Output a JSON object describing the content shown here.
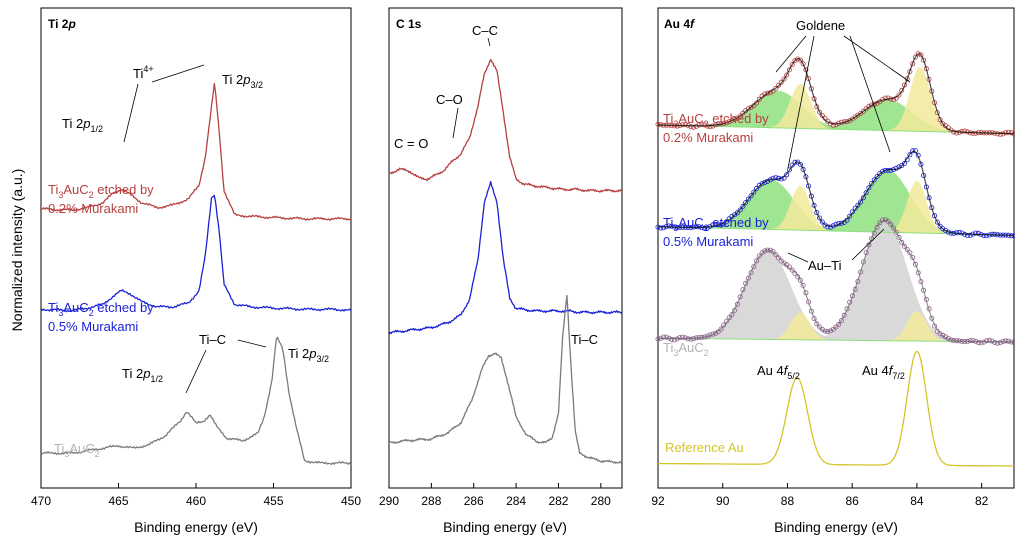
{
  "y_axis_title": "Normalized intensity (a.u.)",
  "colors": {
    "red": "#b5403f",
    "blue": "#1a21d6",
    "gray": "#7a7a7a",
    "pristine_label": "#b3b3b3",
    "ref": "#d4c42a",
    "goldene_fill": "#8ee07f",
    "comp_fill": "#f2ea9a",
    "auti_fill": "#d2d2d2",
    "purple": "#8e5c8e"
  },
  "labels": {
    "ti2p_title_main": "Ti 2",
    "ti2p_title_it": "p",
    "c1s_title": "C 1s",
    "au4f_title_main": "Au 4",
    "au4f_title_it": "f",
    "x_axis_title": "Binding energy (eV)",
    "ti_prefix": "Ti",
    "ti4": "Ti",
    "ti4_sup": "4+",
    "p_it": "p",
    "sub12": "1/2",
    "sub32": "3/2",
    "tic": "Ti–C",
    "cc": "C–C",
    "co": "C–O",
    "c_eq_o": "C = O",
    "goldene": "Goldene",
    "auti": "Au–Ti",
    "au4f_pre": "Au 4",
    "f_it": "f",
    "sub52": "5/2",
    "sub72": "7/2",
    "ref_au": "Reference Au",
    "sample_ti": "Ti",
    "sample_3": "3",
    "sample_au": "AuC",
    "sample_2": "2",
    "etched_by": " etched by",
    "murakami_02": "0.2% Murakami",
    "murakami_05": "0.5% Murakami"
  },
  "chart_data": [
    {
      "type": "line",
      "panel": "Ti 2p",
      "title": "Ti 2p",
      "xlabel": "Binding energy (eV)",
      "ylabel": "Normalized intensity (a.u.)",
      "xlim": [
        470,
        450
      ],
      "xticks": [
        470,
        465,
        460,
        455,
        450
      ],
      "grid": false,
      "series": [
        {
          "name": "Ti3AuC2 etched by 0.2% Murakami",
          "x": [
            470,
            468,
            467,
            466,
            465.3,
            464.8,
            464.3,
            463.5,
            462.5,
            461.5,
            460.5,
            459.8,
            459.4,
            459.0,
            458.8,
            458.5,
            458.2,
            457.5,
            456.5,
            455,
            453,
            451,
            450
          ],
          "y": [
            2.63,
            2.62,
            2.64,
            2.68,
            2.76,
            2.79,
            2.75,
            2.68,
            2.64,
            2.66,
            2.71,
            2.82,
            3.05,
            3.45,
            3.65,
            3.25,
            2.78,
            2.58,
            2.57,
            2.56,
            2.55,
            2.55,
            2.55
          ]
        },
        {
          "name": "Ti3AuC2 etched by 0.5% Murakami",
          "x": [
            470,
            468,
            467,
            466,
            465.3,
            464.8,
            464.3,
            463.5,
            462.5,
            461.5,
            460.5,
            459.8,
            459.4,
            459.0,
            458.8,
            458.5,
            458.2,
            457.5,
            456.5,
            455,
            453,
            451,
            450
          ],
          "y": [
            1.82,
            1.81,
            1.83,
            1.86,
            1.93,
            1.97,
            1.95,
            1.88,
            1.84,
            1.84,
            1.87,
            1.97,
            2.25,
            2.72,
            2.75,
            2.45,
            2.02,
            1.86,
            1.84,
            1.83,
            1.82,
            1.82,
            1.81
          ]
        },
        {
          "name": "Ti3AuC2",
          "x": [
            470,
            468,
            466,
            465,
            464,
            463,
            462,
            461,
            460.6,
            460,
            459.5,
            459.1,
            458.7,
            458,
            457,
            456,
            455.6,
            455.1,
            454.8,
            454.4,
            454,
            453.5,
            453,
            452,
            451,
            450
          ],
          "y": [
            0.66,
            0.66,
            0.7,
            0.72,
            0.7,
            0.73,
            0.8,
            0.92,
            1.0,
            0.9,
            0.92,
            0.97,
            0.88,
            0.78,
            0.76,
            0.82,
            0.95,
            1.25,
            1.6,
            1.5,
            1.15,
            0.85,
            0.6,
            0.58,
            0.58,
            0.58
          ]
        }
      ]
    },
    {
      "type": "line",
      "panel": "C 1s",
      "title": "C 1s",
      "xlabel": "Binding energy (eV)",
      "xlim": [
        290,
        279
      ],
      "xticks": [
        290,
        288,
        286,
        284,
        282,
        280
      ],
      "grid": false,
      "series": [
        {
          "name": "Ti3AuC2 etched by 0.2% Murakami",
          "x": [
            290,
            289.5,
            289.0,
            288.6,
            288.2,
            287.8,
            287.4,
            287.0,
            286.6,
            286.2,
            285.8,
            285.5,
            285.2,
            284.9,
            284.6,
            284.3,
            284.0,
            283.6,
            283.2,
            282.8,
            282.3,
            281.8,
            281.2,
            280.5,
            279.8,
            279
          ],
          "y": [
            2.82,
            2.86,
            2.84,
            2.79,
            2.78,
            2.81,
            2.85,
            2.92,
            2.98,
            3.1,
            3.35,
            3.6,
            3.72,
            3.62,
            3.3,
            2.95,
            2.78,
            2.74,
            2.73,
            2.72,
            2.71,
            2.7,
            2.7,
            2.69,
            2.69,
            2.69
          ]
        },
        {
          "name": "Ti3AuC2 etched by 0.5% Murakami",
          "x": [
            290,
            289.0,
            288.0,
            287.2,
            286.6,
            286.2,
            285.8,
            285.5,
            285.2,
            284.9,
            284.6,
            284.3,
            284.0,
            283.6,
            283.0,
            282.5,
            282.0,
            281.5,
            281.0,
            280.0,
            279
          ],
          "y": [
            1.58,
            1.6,
            1.62,
            1.66,
            1.72,
            1.84,
            2.15,
            2.6,
            2.75,
            2.6,
            2.15,
            1.85,
            1.77,
            1.76,
            1.75,
            1.75,
            1.75,
            1.75,
            1.74,
            1.74,
            1.74
          ]
        },
        {
          "name": "Ti3AuC2",
          "x": [
            290,
            289.0,
            288.0,
            287.2,
            286.6,
            286.1,
            285.6,
            285.3,
            285.0,
            284.7,
            284.4,
            284.0,
            283.5,
            283.0,
            282.6,
            282.3,
            282.0,
            281.8,
            281.6,
            281.4,
            281.2,
            281.0,
            280.5,
            280.0,
            279.5,
            279
          ],
          "y": [
            0.72,
            0.74,
            0.75,
            0.8,
            0.88,
            1.05,
            1.3,
            1.4,
            1.42,
            1.38,
            1.2,
            0.92,
            0.78,
            0.73,
            0.72,
            0.76,
            0.95,
            1.55,
            1.88,
            1.3,
            0.8,
            0.64,
            0.6,
            0.58,
            0.57,
            0.57
          ]
        }
      ]
    },
    {
      "type": "line",
      "panel": "Au 4f",
      "title": "Au 4f",
      "xlabel": "Binding energy (eV)",
      "xlim": [
        92,
        81
      ],
      "xticks": [
        92,
        90,
        88,
        86,
        84,
        82
      ],
      "grid": false,
      "series": [
        {
          "name": "Ti3AuC2 etched by 0.2% Murakami",
          "goldene_peaks": [
            {
              "center": 88.3,
              "height": 0.3,
              "sigma": 0.75
            },
            {
              "center": 84.9,
              "height": 0.25,
              "sigma": 0.75
            }
          ],
          "au_peaks": [
            {
              "center": 87.6,
              "height": 0.36,
              "sigma": 0.32
            },
            {
              "center": 83.9,
              "height": 0.52,
              "sigma": 0.32
            }
          ],
          "baseline": [
            2.75,
            2.68
          ]
        },
        {
          "name": "Ti3AuC2 etched by 0.5% Murakami",
          "goldene_peaks": [
            {
              "center": 88.5,
              "height": 0.4,
              "sigma": 0.7
            },
            {
              "center": 84.9,
              "height": 0.5,
              "sigma": 0.7
            }
          ],
          "au_peaks": [
            {
              "center": 87.6,
              "height": 0.36,
              "sigma": 0.3
            },
            {
              "center": 84.0,
              "height": 0.42,
              "sigma": 0.3
            }
          ],
          "baseline": [
            1.93,
            1.86
          ]
        },
        {
          "name": "Ti3AuC2",
          "auti_peaks": [
            {
              "center": 88.6,
              "height": 0.72,
              "sigma": 0.7
            },
            {
              "center": 85.0,
              "height": 0.97,
              "sigma": 0.7
            }
          ],
          "au_peaks": [
            {
              "center": 87.6,
              "height": 0.22,
              "sigma": 0.3
            },
            {
              "center": 84.0,
              "height": 0.24,
              "sigma": 0.3
            }
          ],
          "baseline": [
            1.03,
            1.0
          ]
        },
        {
          "name": "Reference Au",
          "au_peaks": [
            {
              "center": 87.7,
              "height": 0.7,
              "sigma": 0.32
            },
            {
              "center": 84.0,
              "height": 0.92,
              "sigma": 0.3
            }
          ],
          "baseline": [
            0.02,
            0.0
          ]
        }
      ]
    }
  ]
}
